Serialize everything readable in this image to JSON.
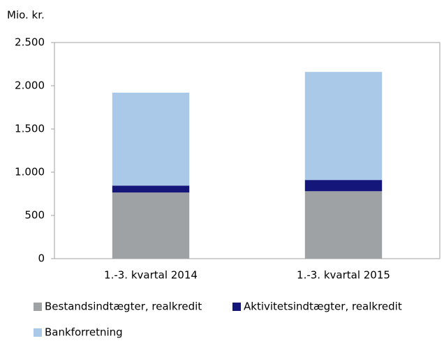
{
  "chart_data": {
    "type": "stacked_bar",
    "y_axis_label": "Mio. kr.",
    "categories": [
      "1.-3. kvartal 2014",
      "1.-3. kvartal 2015"
    ],
    "series": [
      {
        "name": "Bestandsindtægter, realkredit",
        "color": "#9ea2a4",
        "values": [
          765,
          780
        ]
      },
      {
        "name": "Aktivitetsindtægter, realkredit",
        "color": "#15167a",
        "values": [
          80,
          130
        ]
      },
      {
        "name": "Bankforretning",
        "color": "#aac9e9",
        "values": [
          1075,
          1250
        ]
      }
    ],
    "ylim": [
      0,
      2500
    ],
    "yticks": [
      0,
      500,
      {
        "value": 1000,
        "label": "1.000"
      },
      {
        "value": 1500,
        "label": "1.500"
      },
      {
        "value": 2000,
        "label": "2.000"
      },
      {
        "value": 2500,
        "label": "2.500"
      }
    ],
    "grid": false,
    "legend": "bottom"
  }
}
